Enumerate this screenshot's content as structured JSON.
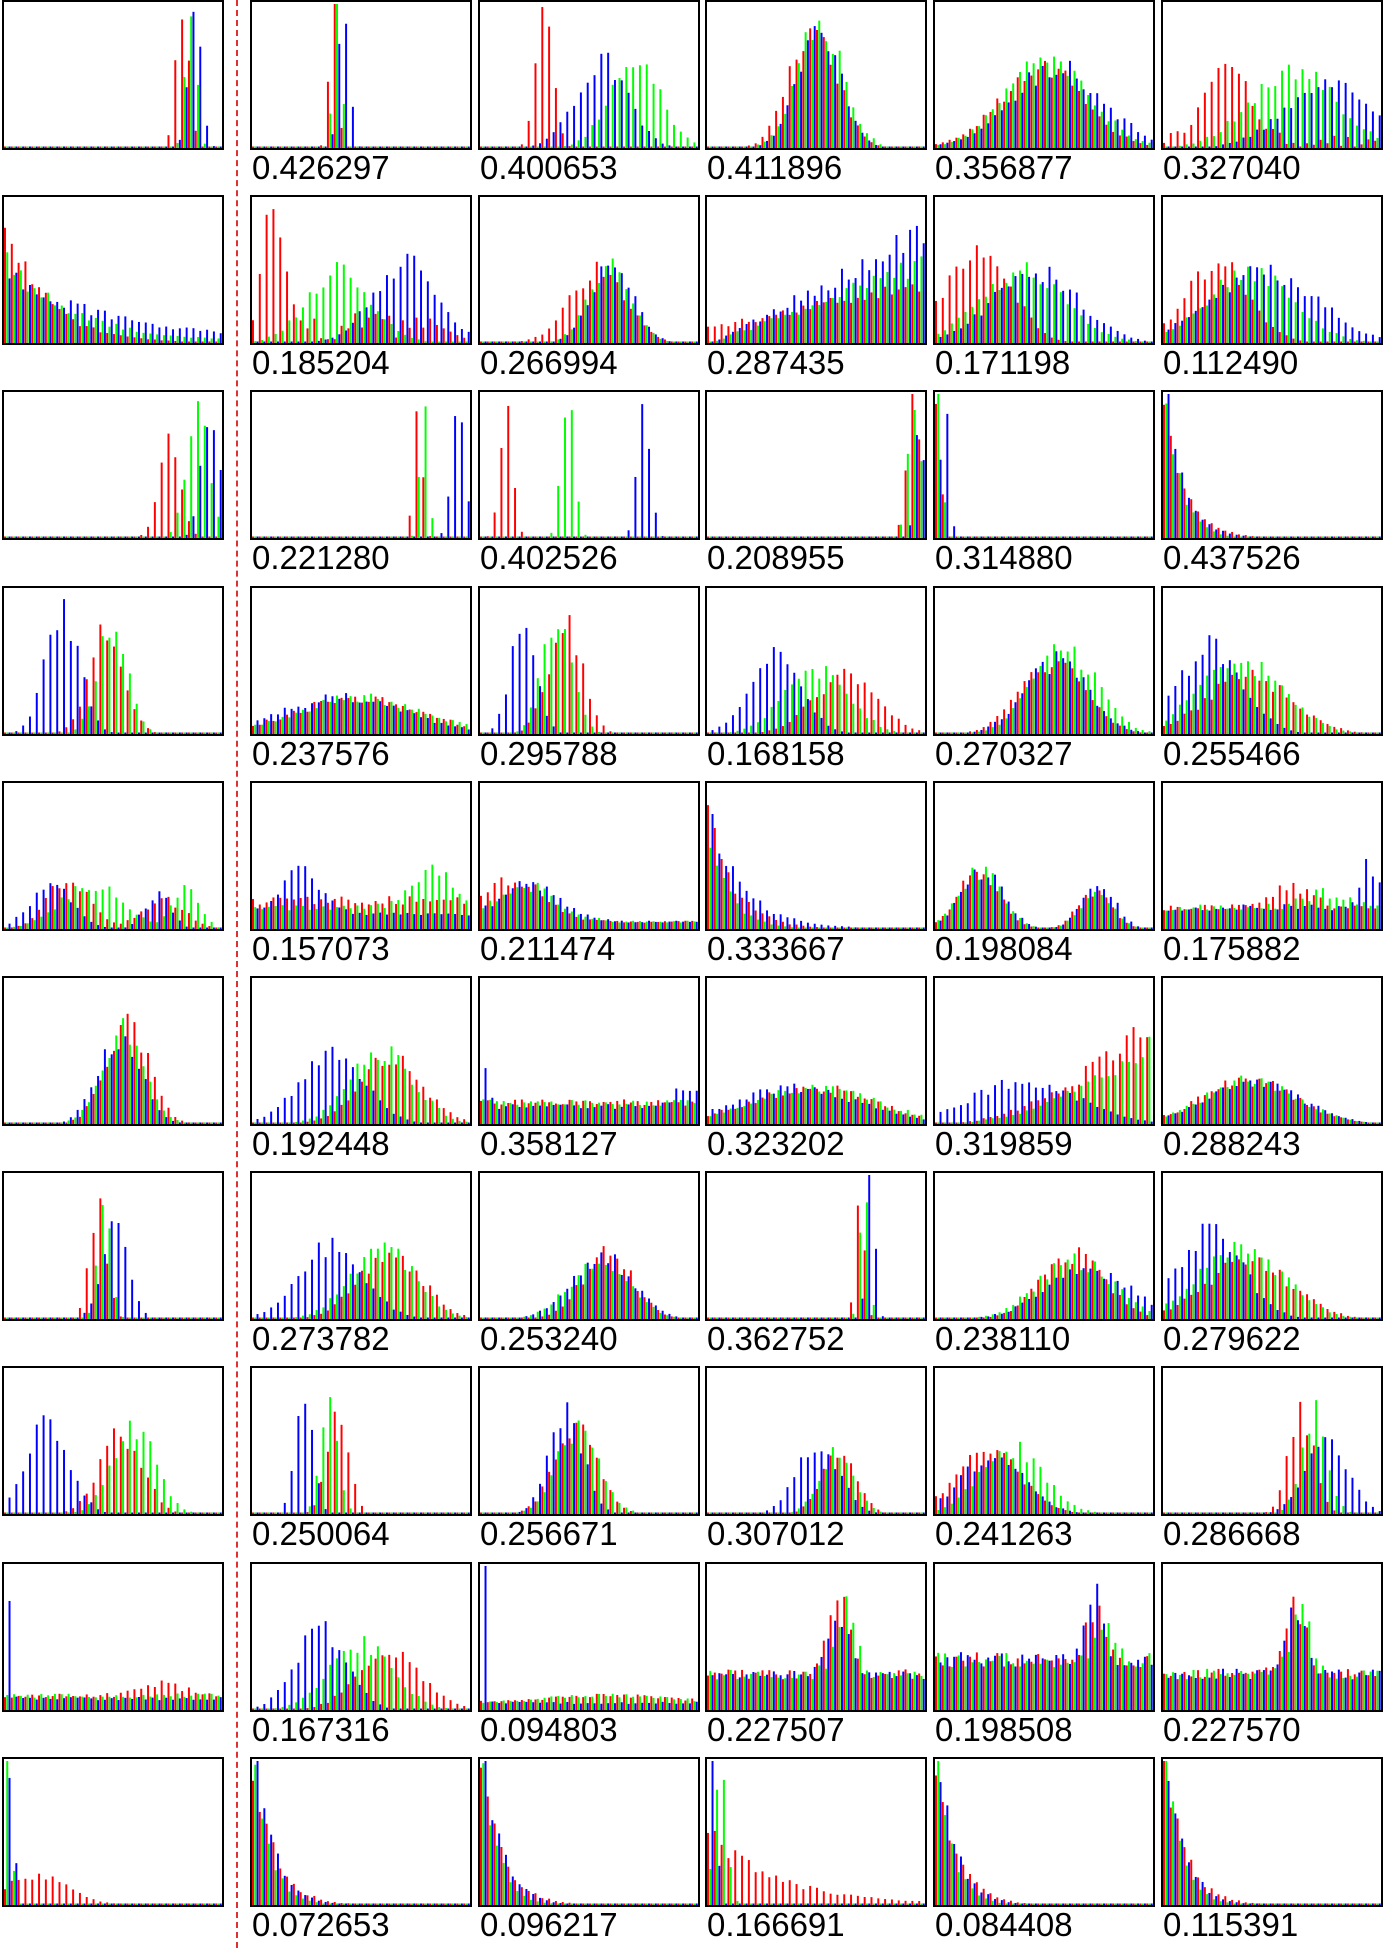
{
  "colors": {
    "red": "#ff0000",
    "green": "#00ff00",
    "blue": "#0000ff",
    "divider": "#e03030",
    "frame": "#000000"
  },
  "chart_data": {
    "type": "bar",
    "description_of_layout": "grid",
    "rows": [
      {
        "query_shape": "spike_high",
        "matches": [
          {
            "score": "0.426297",
            "shape": "spike_mid"
          },
          {
            "score": "0.400653",
            "shape": "spread_red_low"
          },
          {
            "score": "0.411896",
            "shape": "bell_mid"
          },
          {
            "score": "0.356877",
            "shape": "broad_bell"
          },
          {
            "score": "0.327040",
            "shape": "scatter_mid"
          }
        ]
      },
      {
        "query_shape": "decay_left",
        "matches": [
          {
            "score": "0.185204",
            "shape": "sparse_mixed"
          },
          {
            "score": "0.266994",
            "shape": "bell_mid_right"
          },
          {
            "score": "0.287435",
            "shape": "ramp_up"
          },
          {
            "score": "0.171198",
            "shape": "spike_left_broad"
          },
          {
            "score": "0.112490",
            "shape": "broad_left"
          }
        ]
      },
      {
        "query_shape": "spikes_right",
        "matches": [
          {
            "score": "0.221280",
            "shape": "spikes_far_right"
          },
          {
            "score": "0.402526",
            "shape": "spikes_separated"
          },
          {
            "score": "0.208955",
            "shape": "spike_right_edge"
          },
          {
            "score": "0.314880",
            "shape": "spike_left_edge"
          },
          {
            "score": "0.437526",
            "shape": "decay_left_edge"
          }
        ]
      },
      {
        "query_shape": "blue_left_green_mid",
        "matches": [
          {
            "score": "0.237576",
            "shape": "flat_low"
          },
          {
            "score": "0.295788",
            "shape": "spikes_left_mid"
          },
          {
            "score": "0.168158",
            "shape": "blue_left_red_right"
          },
          {
            "score": "0.270327",
            "shape": "bell_right"
          },
          {
            "score": "0.255466",
            "shape": "scatter_left"
          }
        ]
      },
      {
        "query_shape": "bimodal_flat",
        "matches": [
          {
            "score": "0.157073",
            "shape": "flat_low_green_right"
          },
          {
            "score": "0.211474",
            "shape": "low_left_hump"
          },
          {
            "score": "0.333667",
            "shape": "spike_left_decay"
          },
          {
            "score": "0.198084",
            "shape": "bimodal"
          },
          {
            "score": "0.175882",
            "shape": "flat_mixed"
          }
        ]
      },
      {
        "query_shape": "bell_center",
        "matches": [
          {
            "score": "0.192448",
            "shape": "blue_left_green_right"
          },
          {
            "score": "0.358127",
            "shape": "flat_edges"
          },
          {
            "score": "0.323202",
            "shape": "flat_low"
          },
          {
            "score": "0.319859",
            "shape": "ramp_red_right"
          },
          {
            "score": "0.288243",
            "shape": "broad_bell_low"
          }
        ]
      },
      {
        "query_shape": "spike_center_left",
        "matches": [
          {
            "score": "0.273782",
            "shape": "blue_left_green_right"
          },
          {
            "score": "0.253240",
            "shape": "mid_hump"
          },
          {
            "score": "0.362752",
            "shape": "spike_right_mid"
          },
          {
            "score": "0.238110",
            "shape": "rise_right"
          },
          {
            "score": "0.279622",
            "shape": "scatter_left"
          }
        ]
      },
      {
        "query_shape": "blue_left_red_mid",
        "matches": [
          {
            "score": "0.250064",
            "shape": "spikes_left_narrow"
          },
          {
            "score": "0.256671",
            "shape": "bell_mid_skew"
          },
          {
            "score": "0.307012",
            "shape": "hump_mid_right"
          },
          {
            "score": "0.241263",
            "shape": "decay_left_broad"
          },
          {
            "score": "0.286668",
            "shape": "hump_right"
          }
        ]
      },
      {
        "query_shape": "spike_left_flat",
        "matches": [
          {
            "score": "0.167316",
            "shape": "blue_left_red_right"
          },
          {
            "score": "0.094803",
            "shape": "spike_left_edge_flat"
          },
          {
            "score": "0.227507",
            "shape": "peak_mid_right"
          },
          {
            "score": "0.198508",
            "shape": "flat_peak_right"
          },
          {
            "score": "0.227570",
            "shape": "peak_mid_right"
          }
        ]
      },
      {
        "query_shape": "spike_left_red_tail",
        "matches": [
          {
            "score": "0.072653",
            "shape": "decay_left_edge"
          },
          {
            "score": "0.096217",
            "shape": "decay_left_edge"
          },
          {
            "score": "0.166691",
            "shape": "spike_left_red_hump"
          },
          {
            "score": "0.084408",
            "shape": "decay_left_edge"
          },
          {
            "score": "0.115391",
            "shape": "decay_left_edge"
          }
        ]
      }
    ]
  }
}
